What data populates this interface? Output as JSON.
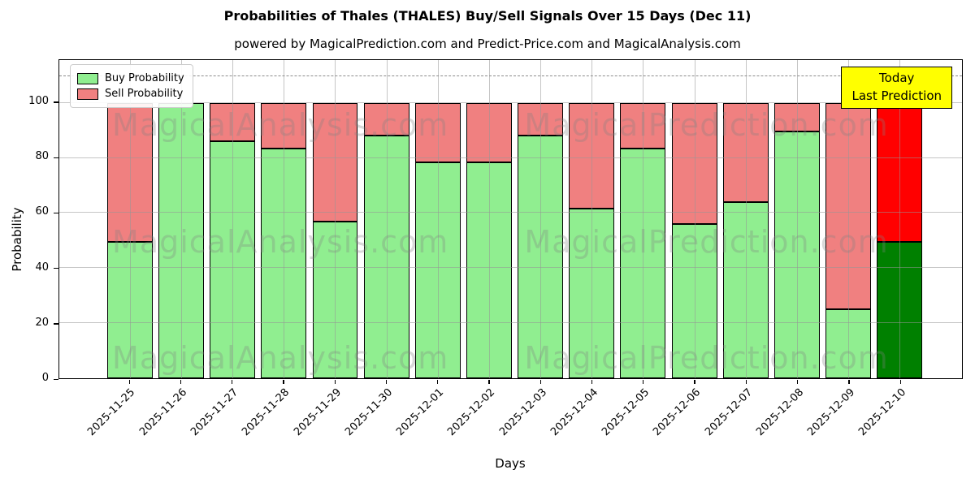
{
  "chart_data": {
    "type": "bar",
    "stacked": true,
    "title": "Probabilities of Thales (THALES) Buy/Sell Signals Over 15 Days (Dec 11)",
    "subtitle": "powered by MagicalPrediction.com and Predict-Price.com and MagicalAnalysis.com",
    "xlabel": "Days",
    "ylabel": "Probability",
    "categories": [
      "2025-11-25",
      "2025-11-26",
      "2025-11-27",
      "2025-11-28",
      "2025-11-29",
      "2025-11-30",
      "2025-12-01",
      "2025-12-02",
      "2025-12-03",
      "2025-12-04",
      "2025-12-05",
      "2025-12-06",
      "2025-12-07",
      "2025-12-08",
      "2025-12-09",
      "2025-12-10"
    ],
    "series": [
      {
        "name": "Buy Probability",
        "color": "#90ee90",
        "values": [
          49.5,
          100,
          86,
          83.5,
          57,
          88,
          78.5,
          78.5,
          88,
          61.5,
          83.5,
          56,
          64,
          89.5,
          25,
          49.5
        ]
      },
      {
        "name": "Sell Probability",
        "color": "#f08080",
        "values": [
          50.5,
          0,
          14,
          16.5,
          43,
          12,
          21.5,
          21.5,
          12,
          38.5,
          16.5,
          44,
          36,
          10.5,
          75,
          50.5
        ]
      }
    ],
    "today_bar": {
      "category": "2025-12-10",
      "buy_color": "#008000",
      "sell_color": "#ff0000"
    },
    "yticks": [
      0,
      20,
      40,
      60,
      80,
      100
    ],
    "ylim": [
      0,
      115.5
    ],
    "dashed_line_y": 110,
    "grid": true,
    "legend_position": "upper left",
    "bar_edge_color": "#000000"
  },
  "annotation": {
    "line1": "Today",
    "line2": "Last Prediction",
    "bg_color": "#ffff00"
  },
  "watermarks": {
    "left": "MagicalAnalysis.com",
    "right": "MagicalPrediction.com"
  }
}
